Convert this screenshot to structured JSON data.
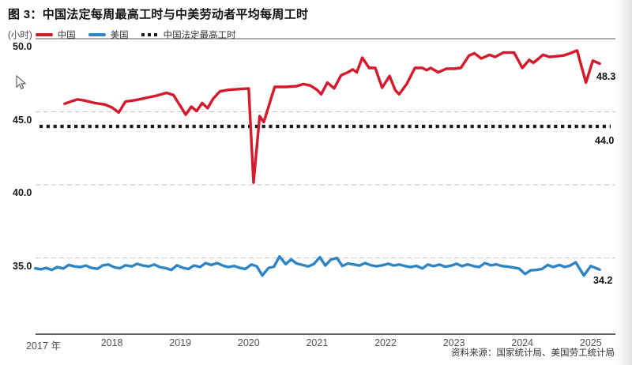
{
  "header": {
    "title": "图 3：中国法定每周最高工时与中美劳动者平均每周工时"
  },
  "chart_data": {
    "type": "line",
    "title": "图 3：中国法定每周最高工时与中美劳动者平均每周工时",
    "unit_label": "(小时)",
    "legend_position": "top-left",
    "grid": "horizontal-dashed",
    "legend": [
      {
        "label": "中国",
        "color": "#d6182b",
        "style": "solid"
      },
      {
        "label": "美国",
        "color": "#2e85c4",
        "style": "solid"
      },
      {
        "label": "中国法定最高工时",
        "color": "#1a1a1a",
        "style": "dotted"
      }
    ],
    "y_axis": {
      "ticks": [
        {
          "label": "50.0",
          "value": 50,
          "line": "solid"
        },
        {
          "label": "45.0",
          "value": 45,
          "line": "dashed"
        },
        {
          "label": "40.0",
          "value": 40,
          "line": "dashed"
        },
        {
          "label": "35.0",
          "value": 35,
          "line": "dashed"
        }
      ],
      "ylim": [
        33.2,
        50.2
      ]
    },
    "x_axis": {
      "ticks": [
        {
          "label": "2017 年",
          "year": 2017
        },
        {
          "label": "2018",
          "year": 2018
        },
        {
          "label": "2019",
          "year": 2019
        },
        {
          "label": "2020",
          "year": 2020
        },
        {
          "label": "2021",
          "year": 2021
        },
        {
          "label": "2022",
          "year": 2022
        },
        {
          "label": "2023",
          "year": 2023
        },
        {
          "label": "2024",
          "year": 2024
        },
        {
          "label": "2025",
          "year": 2025
        }
      ],
      "xlim": [
        2016.8,
        2025.35
      ]
    },
    "statutory_max": {
      "name": "中国法定最高工时",
      "value": 44.0,
      "label": "44.0",
      "color": "#1a1a1a"
    },
    "series": [
      {
        "name": "中国",
        "color": "#d6182b",
        "end_label": "48.3",
        "points": [
          [
            2017.31,
            45.55
          ],
          [
            2017.4,
            45.7
          ],
          [
            2017.5,
            45.85
          ],
          [
            2017.62,
            45.75
          ],
          [
            2017.75,
            45.6
          ],
          [
            2017.9,
            45.5
          ],
          [
            2018.0,
            45.3
          ],
          [
            2018.1,
            44.95
          ],
          [
            2018.2,
            45.7
          ],
          [
            2018.35,
            45.8
          ],
          [
            2018.5,
            45.95
          ],
          [
            2018.65,
            46.1
          ],
          [
            2018.8,
            46.3
          ],
          [
            2018.9,
            46.15
          ],
          [
            2019.0,
            45.4
          ],
          [
            2019.08,
            44.8
          ],
          [
            2019.16,
            45.35
          ],
          [
            2019.24,
            45.05
          ],
          [
            2019.32,
            45.6
          ],
          [
            2019.4,
            45.25
          ],
          [
            2019.48,
            45.9
          ],
          [
            2019.58,
            46.4
          ],
          [
            2019.7,
            46.5
          ],
          [
            2019.85,
            46.55
          ],
          [
            2020.0,
            46.6
          ],
          [
            2020.07,
            40.15
          ],
          [
            2020.16,
            44.7
          ],
          [
            2020.22,
            44.3
          ],
          [
            2020.38,
            46.7
          ],
          [
            2020.55,
            46.7
          ],
          [
            2020.7,
            46.75
          ],
          [
            2020.8,
            46.9
          ],
          [
            2020.9,
            46.8
          ],
          [
            2021.0,
            46.5
          ],
          [
            2021.06,
            46.2
          ],
          [
            2021.15,
            47.0
          ],
          [
            2021.25,
            46.6
          ],
          [
            2021.35,
            47.5
          ],
          [
            2021.45,
            47.7
          ],
          [
            2021.52,
            47.9
          ],
          [
            2021.58,
            47.7
          ],
          [
            2021.66,
            48.7
          ],
          [
            2021.76,
            48.0
          ],
          [
            2021.85,
            48.0
          ],
          [
            2021.95,
            46.65
          ],
          [
            2022.06,
            47.45
          ],
          [
            2022.14,
            46.5
          ],
          [
            2022.2,
            46.2
          ],
          [
            2022.31,
            46.9
          ],
          [
            2022.43,
            48.0
          ],
          [
            2022.54,
            48.0
          ],
          [
            2022.6,
            47.85
          ],
          [
            2022.66,
            48.0
          ],
          [
            2022.77,
            47.7
          ],
          [
            2022.89,
            47.95
          ],
          [
            2023.0,
            47.95
          ],
          [
            2023.1,
            48.0
          ],
          [
            2023.22,
            48.85
          ],
          [
            2023.3,
            49.0
          ],
          [
            2023.4,
            48.65
          ],
          [
            2023.52,
            48.9
          ],
          [
            2023.6,
            48.75
          ],
          [
            2023.72,
            49.05
          ],
          [
            2023.88,
            49.05
          ],
          [
            2024.0,
            48.0
          ],
          [
            2024.1,
            48.55
          ],
          [
            2024.16,
            48.35
          ],
          [
            2024.24,
            48.65
          ],
          [
            2024.3,
            48.9
          ],
          [
            2024.4,
            48.75
          ],
          [
            2024.5,
            48.8
          ],
          [
            2024.6,
            48.85
          ],
          [
            2024.7,
            49.0
          ],
          [
            2024.8,
            49.2
          ],
          [
            2024.93,
            47.0
          ],
          [
            2025.03,
            48.5
          ],
          [
            2025.13,
            48.3
          ]
        ]
      },
      {
        "name": "美国",
        "color": "#2e85c4",
        "end_label": "34.2",
        "points": [
          [
            2016.88,
            34.3
          ],
          [
            2016.96,
            34.22
          ],
          [
            2017.04,
            34.32
          ],
          [
            2017.12,
            34.18
          ],
          [
            2017.2,
            34.38
          ],
          [
            2017.29,
            34.28
          ],
          [
            2017.37,
            34.52
          ],
          [
            2017.45,
            34.42
          ],
          [
            2017.54,
            34.38
          ],
          [
            2017.62,
            34.48
          ],
          [
            2017.7,
            34.32
          ],
          [
            2017.79,
            34.26
          ],
          [
            2017.87,
            34.5
          ],
          [
            2017.95,
            34.55
          ],
          [
            2018.04,
            34.35
          ],
          [
            2018.12,
            34.3
          ],
          [
            2018.2,
            34.5
          ],
          [
            2018.29,
            34.42
          ],
          [
            2018.37,
            34.6
          ],
          [
            2018.45,
            34.48
          ],
          [
            2018.54,
            34.42
          ],
          [
            2018.62,
            34.55
          ],
          [
            2018.7,
            34.38
          ],
          [
            2018.79,
            34.3
          ],
          [
            2018.87,
            34.18
          ],
          [
            2018.95,
            34.5
          ],
          [
            2019.04,
            34.32
          ],
          [
            2019.12,
            34.25
          ],
          [
            2019.2,
            34.48
          ],
          [
            2019.29,
            34.38
          ],
          [
            2019.37,
            34.65
          ],
          [
            2019.45,
            34.52
          ],
          [
            2019.54,
            34.65
          ],
          [
            2019.62,
            34.48
          ],
          [
            2019.7,
            34.38
          ],
          [
            2019.79,
            34.45
          ],
          [
            2019.87,
            34.32
          ],
          [
            2019.95,
            34.25
          ],
          [
            2020.04,
            34.55
          ],
          [
            2020.12,
            34.42
          ],
          [
            2020.2,
            33.8
          ],
          [
            2020.29,
            34.32
          ],
          [
            2020.37,
            34.4
          ],
          [
            2020.45,
            35.1
          ],
          [
            2020.54,
            34.58
          ],
          [
            2020.62,
            34.9
          ],
          [
            2020.7,
            34.62
          ],
          [
            2020.79,
            34.52
          ],
          [
            2020.87,
            34.42
          ],
          [
            2020.95,
            34.58
          ],
          [
            2021.04,
            35.05
          ],
          [
            2021.12,
            34.48
          ],
          [
            2021.2,
            34.88
          ],
          [
            2021.29,
            35.0
          ],
          [
            2021.37,
            34.45
          ],
          [
            2021.45,
            34.62
          ],
          [
            2021.54,
            34.55
          ],
          [
            2021.62,
            34.48
          ],
          [
            2021.7,
            34.65
          ],
          [
            2021.79,
            34.5
          ],
          [
            2021.87,
            34.44
          ],
          [
            2021.95,
            34.5
          ],
          [
            2022.04,
            34.6
          ],
          [
            2022.12,
            34.48
          ],
          [
            2022.2,
            34.55
          ],
          [
            2022.29,
            34.44
          ],
          [
            2022.37,
            34.38
          ],
          [
            2022.45,
            34.46
          ],
          [
            2022.54,
            34.28
          ],
          [
            2022.62,
            34.55
          ],
          [
            2022.7,
            34.44
          ],
          [
            2022.79,
            34.55
          ],
          [
            2022.87,
            34.4
          ],
          [
            2022.95,
            34.46
          ],
          [
            2023.04,
            34.6
          ],
          [
            2023.12,
            34.44
          ],
          [
            2023.2,
            34.56
          ],
          [
            2023.29,
            34.44
          ],
          [
            2023.37,
            34.38
          ],
          [
            2023.45,
            34.65
          ],
          [
            2023.54,
            34.5
          ],
          [
            2023.62,
            34.56
          ],
          [
            2023.7,
            34.45
          ],
          [
            2023.79,
            34.4
          ],
          [
            2023.87,
            34.34
          ],
          [
            2023.95,
            34.28
          ],
          [
            2024.04,
            33.9
          ],
          [
            2024.12,
            34.15
          ],
          [
            2024.2,
            34.18
          ],
          [
            2024.29,
            34.25
          ],
          [
            2024.37,
            34.52
          ],
          [
            2024.45,
            34.38
          ],
          [
            2024.54,
            34.52
          ],
          [
            2024.62,
            34.38
          ],
          [
            2024.7,
            34.48
          ],
          [
            2024.78,
            34.7
          ],
          [
            2024.9,
            33.8
          ],
          [
            2025.0,
            34.45
          ],
          [
            2025.13,
            34.2
          ]
        ]
      }
    ],
    "source": "资料来源：国家统计局、美国劳工统计局"
  }
}
